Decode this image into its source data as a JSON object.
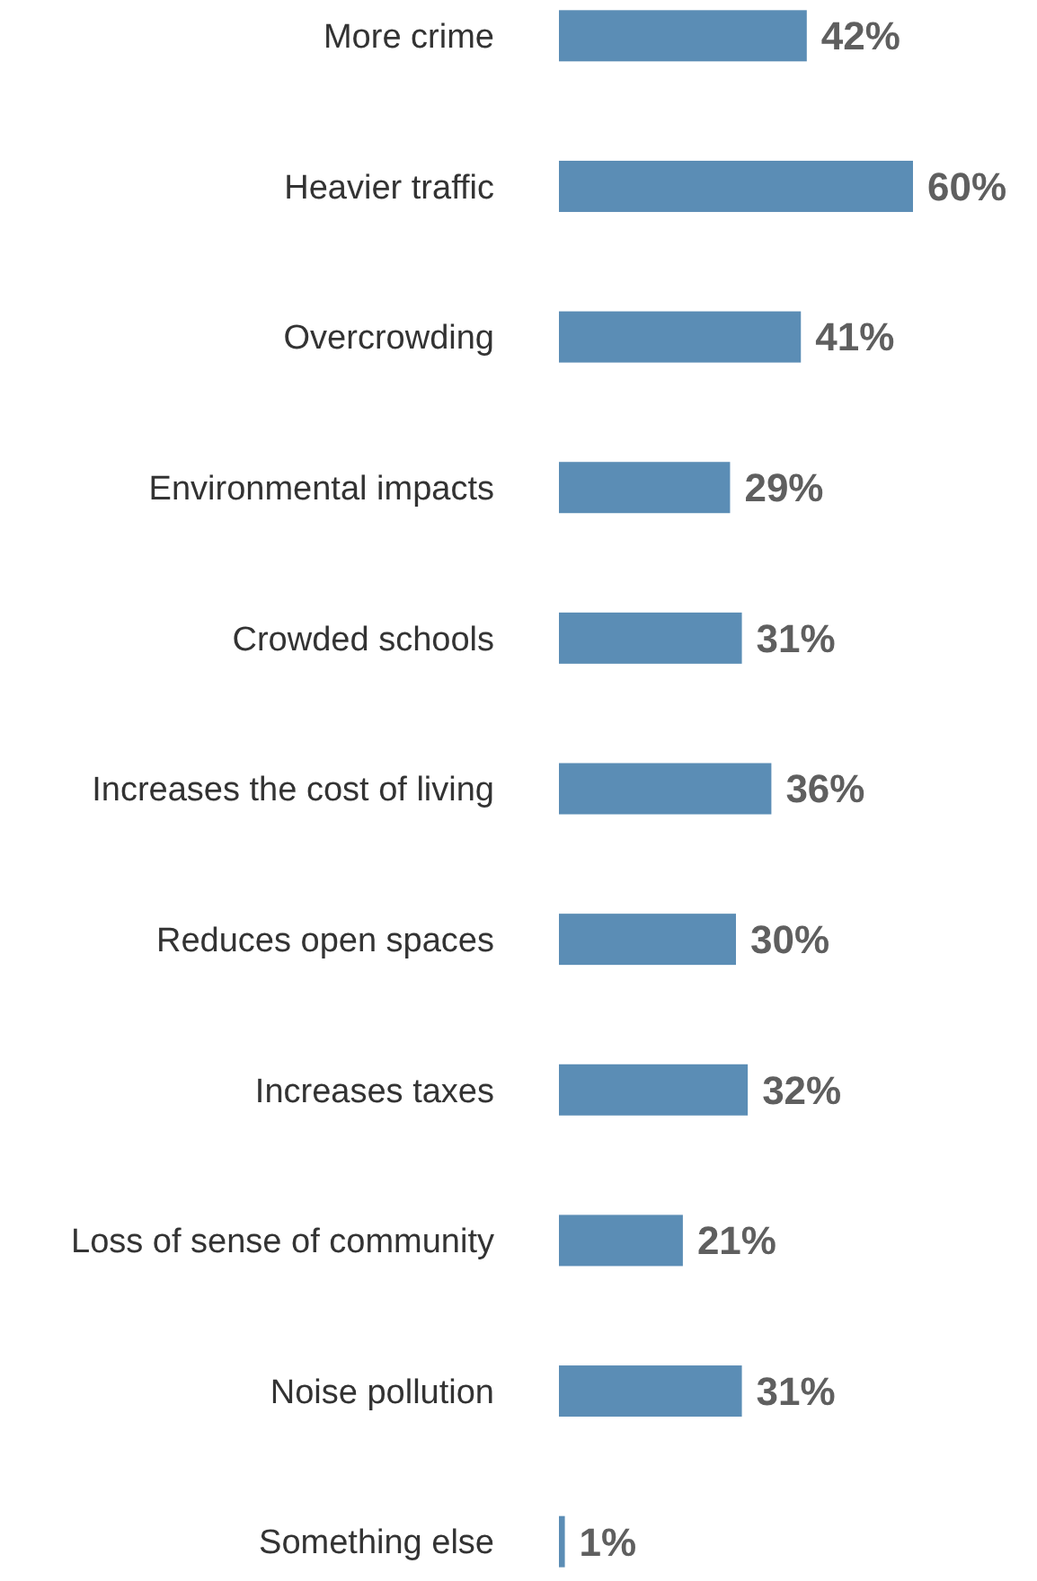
{
  "chart_data": {
    "type": "bar",
    "orientation": "horizontal",
    "categories": [
      "More crime",
      "Heavier traffic",
      "Overcrowding",
      "Environmental impacts",
      "Crowded schools",
      "Increases the cost of living",
      "Reduces open spaces",
      "Increases taxes",
      "Loss of sense of community",
      "Noise pollution",
      "Something else"
    ],
    "values": [
      42,
      60,
      41,
      29,
      31,
      36,
      30,
      32,
      21,
      31,
      1
    ],
    "value_labels": [
      "42%",
      "60%",
      "41%",
      "29%",
      "31%",
      "36%",
      "30%",
      "32%",
      "21%",
      "31%",
      "1%"
    ],
    "color": "#5b8db5"
  }
}
